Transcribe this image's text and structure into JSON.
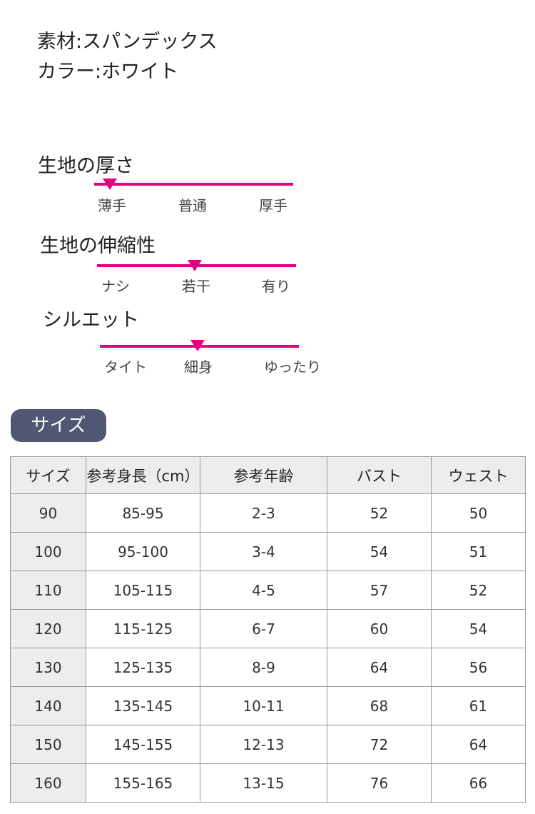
{
  "product": {
    "material": "素材:スパンデックス",
    "color": "カラー:ホワイト"
  },
  "scales": [
    {
      "title": "生地の厚さ",
      "labels": [
        "薄手",
        "普通",
        "厚手"
      ],
      "level": 0.08
    },
    {
      "title": "生地の伸縮性",
      "labels": [
        "ナシ",
        "若干",
        "有り"
      ],
      "level": 0.49
    },
    {
      "title": "シルエット",
      "labels": [
        "タイト",
        "細身",
        "ゆったり"
      ],
      "level": 0.49
    }
  ],
  "size_section": {
    "label": "サイズ",
    "accent_color": "#505774"
  },
  "size_table": {
    "headers": [
      "サイズ",
      "参考身長（cm）",
      "参考年齢",
      "バスト",
      "ウェスト"
    ],
    "rows": [
      [
        "90",
        "85-95",
        "2-3",
        "52",
        "50"
      ],
      [
        "100",
        "95-100",
        "3-4",
        "54",
        "51"
      ],
      [
        "110",
        "105-115",
        "4-5",
        "57",
        "52"
      ],
      [
        "120",
        "115-125",
        "6-7",
        "60",
        "54"
      ],
      [
        "130",
        "125-135",
        "8-9",
        "64",
        "56"
      ],
      [
        "140",
        "135-145",
        "10-11",
        "68",
        "61"
      ],
      [
        "150",
        "145-155",
        "12-13",
        "72",
        "64"
      ],
      [
        "160",
        "155-165",
        "13-15",
        "76",
        "66"
      ]
    ]
  },
  "colors": {
    "scale_accent": "#e4007f",
    "header_bg": "#ededed",
    "border": "#9a9a9a"
  }
}
